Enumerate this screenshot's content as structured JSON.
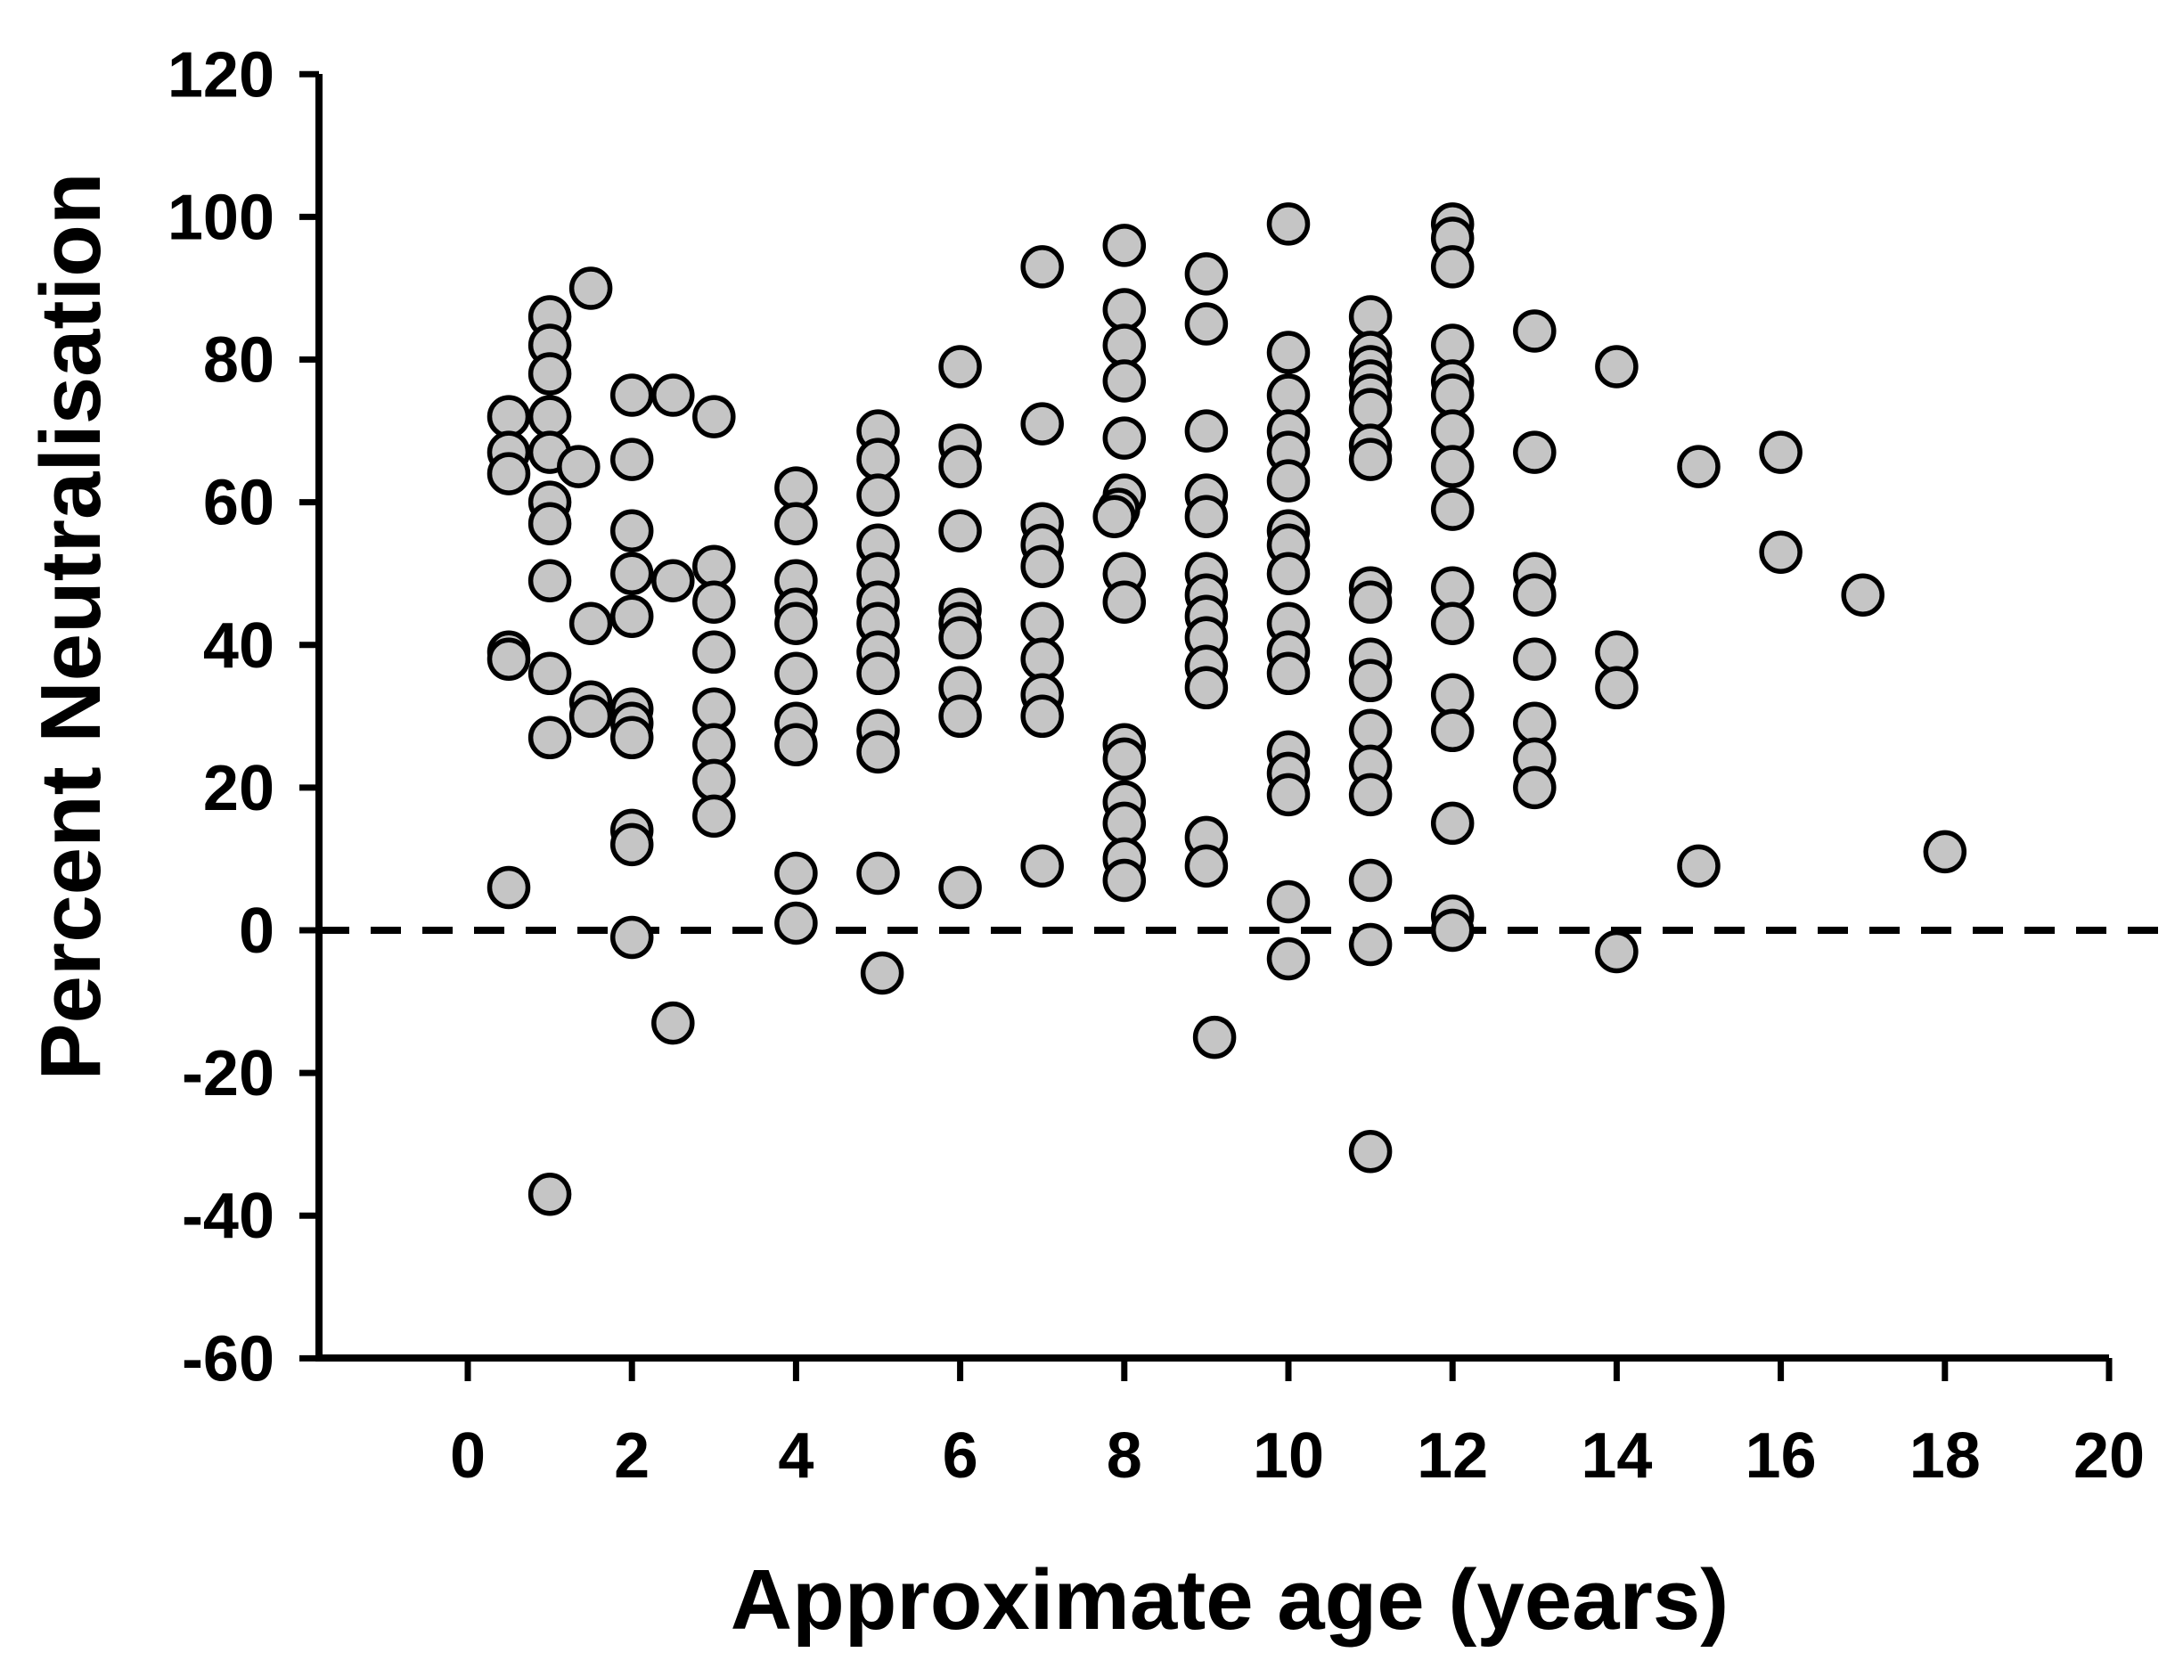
{
  "chart_data": {
    "type": "scatter",
    "title": "",
    "xlabel": "Approximate age (years)",
    "ylabel": "Percent Neutralisation",
    "x_axis": {
      "min": -1.8,
      "max": 20,
      "ticks": [
        0,
        2,
        4,
        6,
        8,
        10,
        12,
        14,
        16,
        18,
        20
      ]
    },
    "y_axis": {
      "min": -60,
      "max": 120,
      "ticks": [
        120,
        100,
        80,
        60,
        40,
        20,
        0,
        -20,
        -40,
        -60
      ]
    },
    "grid": false,
    "legend": "none",
    "reference_line_y": 0,
    "reference_line_style": "dashed",
    "marker": {
      "shape": "circle",
      "fill": "#c5c5c5",
      "stroke": "#000000"
    },
    "points": [
      [
        0.5,
        72
      ],
      [
        0.5,
        67
      ],
      [
        0.5,
        64
      ],
      [
        0.5,
        39
      ],
      [
        0.5,
        38
      ],
      [
        0.5,
        6
      ],
      [
        1,
        86
      ],
      [
        1,
        82
      ],
      [
        1,
        78
      ],
      [
        1,
        72
      ],
      [
        1,
        67
      ],
      [
        1,
        60
      ],
      [
        1,
        57
      ],
      [
        1,
        49
      ],
      [
        1,
        36
      ],
      [
        1,
        27
      ],
      [
        1,
        -37
      ],
      [
        1.35,
        65
      ],
      [
        1.5,
        90
      ],
      [
        1.5,
        43
      ],
      [
        1.5,
        32
      ],
      [
        1.5,
        30
      ],
      [
        2,
        75
      ],
      [
        2,
        66
      ],
      [
        2,
        56
      ],
      [
        2,
        50
      ],
      [
        2,
        44
      ],
      [
        2,
        31
      ],
      [
        2,
        29
      ],
      [
        2,
        27
      ],
      [
        2,
        14
      ],
      [
        2,
        12
      ],
      [
        2,
        -1
      ],
      [
        2.5,
        75
      ],
      [
        2.5,
        49
      ],
      [
        2.5,
        -13
      ],
      [
        3,
        72
      ],
      [
        3,
        51
      ],
      [
        3,
        46
      ],
      [
        3,
        39
      ],
      [
        3,
        31
      ],
      [
        3,
        26
      ],
      [
        3,
        21
      ],
      [
        3,
        16
      ],
      [
        4,
        62
      ],
      [
        4,
        57
      ],
      [
        4,
        49
      ],
      [
        4,
        45
      ],
      [
        4,
        43
      ],
      [
        4,
        36
      ],
      [
        4,
        29
      ],
      [
        4,
        26
      ],
      [
        4,
        8
      ],
      [
        4,
        1
      ],
      [
        5,
        70
      ],
      [
        5,
        66
      ],
      [
        5,
        61
      ],
      [
        5,
        54
      ],
      [
        5,
        50
      ],
      [
        5,
        46
      ],
      [
        5,
        43
      ],
      [
        5,
        39
      ],
      [
        5,
        36
      ],
      [
        5,
        28
      ],
      [
        5,
        25
      ],
      [
        5,
        8
      ],
      [
        5.05,
        -6
      ],
      [
        6,
        79
      ],
      [
        6,
        68
      ],
      [
        6,
        65
      ],
      [
        6,
        56
      ],
      [
        6,
        45
      ],
      [
        6,
        43
      ],
      [
        6,
        41
      ],
      [
        6,
        34
      ],
      [
        6,
        30
      ],
      [
        6,
        6
      ],
      [
        7,
        93
      ],
      [
        7,
        71
      ],
      [
        7,
        57
      ],
      [
        7,
        54
      ],
      [
        7,
        51
      ],
      [
        7,
        43
      ],
      [
        7,
        38
      ],
      [
        7,
        33
      ],
      [
        7,
        30
      ],
      [
        7,
        9
      ],
      [
        8,
        96
      ],
      [
        8,
        87
      ],
      [
        8,
        82
      ],
      [
        8,
        77
      ],
      [
        8,
        69
      ],
      [
        8,
        61
      ],
      [
        7.93,
        59
      ],
      [
        7.88,
        58
      ],
      [
        8,
        50
      ],
      [
        8,
        46
      ],
      [
        8,
        26
      ],
      [
        8,
        24
      ],
      [
        8,
        18
      ],
      [
        8,
        15
      ],
      [
        8,
        10
      ],
      [
        8,
        7
      ],
      [
        9,
        92
      ],
      [
        9,
        85
      ],
      [
        9,
        70
      ],
      [
        9,
        61
      ],
      [
        9,
        58
      ],
      [
        9,
        50
      ],
      [
        9,
        47
      ],
      [
        9,
        44
      ],
      [
        9,
        41
      ],
      [
        9,
        37
      ],
      [
        9,
        34
      ],
      [
        9,
        13
      ],
      [
        9,
        9
      ],
      [
        9.1,
        -15
      ],
      [
        10,
        99
      ],
      [
        10,
        81
      ],
      [
        10,
        75
      ],
      [
        10,
        70
      ],
      [
        10,
        67
      ],
      [
        10,
        63
      ],
      [
        10,
        56
      ],
      [
        10,
        54
      ],
      [
        10,
        50
      ],
      [
        10,
        43
      ],
      [
        10,
        39
      ],
      [
        10,
        36
      ],
      [
        10,
        25
      ],
      [
        10,
        22
      ],
      [
        10,
        19
      ],
      [
        10,
        4
      ],
      [
        10,
        -4
      ],
      [
        11,
        86
      ],
      [
        11,
        81
      ],
      [
        11,
        79
      ],
      [
        11,
        77
      ],
      [
        11,
        75
      ],
      [
        11,
        73
      ],
      [
        11,
        68
      ],
      [
        11,
        66
      ],
      [
        11,
        48
      ],
      [
        11,
        46
      ],
      [
        11,
        38
      ],
      [
        11,
        35
      ],
      [
        11,
        28
      ],
      [
        11,
        23
      ],
      [
        11,
        19
      ],
      [
        11,
        7
      ],
      [
        11,
        -2
      ],
      [
        11,
        -31
      ],
      [
        12,
        99
      ],
      [
        12,
        97
      ],
      [
        12,
        93
      ],
      [
        12,
        82
      ],
      [
        12,
        77
      ],
      [
        12,
        75
      ],
      [
        12,
        70
      ],
      [
        12,
        65
      ],
      [
        12,
        59
      ],
      [
        12,
        48
      ],
      [
        12,
        43
      ],
      [
        12,
        33
      ],
      [
        12,
        28
      ],
      [
        12,
        15
      ],
      [
        12,
        2
      ],
      [
        12,
        0
      ],
      [
        13,
        84
      ],
      [
        13,
        67
      ],
      [
        13,
        50
      ],
      [
        13,
        47
      ],
      [
        13,
        38
      ],
      [
        13,
        29
      ],
      [
        13,
        24
      ],
      [
        13,
        20
      ],
      [
        14,
        79
      ],
      [
        14,
        39
      ],
      [
        14,
        34
      ],
      [
        14,
        -3
      ],
      [
        15,
        65
      ],
      [
        15,
        9
      ],
      [
        16,
        67
      ],
      [
        16,
        53
      ],
      [
        17,
        47
      ],
      [
        18,
        11
      ]
    ]
  }
}
